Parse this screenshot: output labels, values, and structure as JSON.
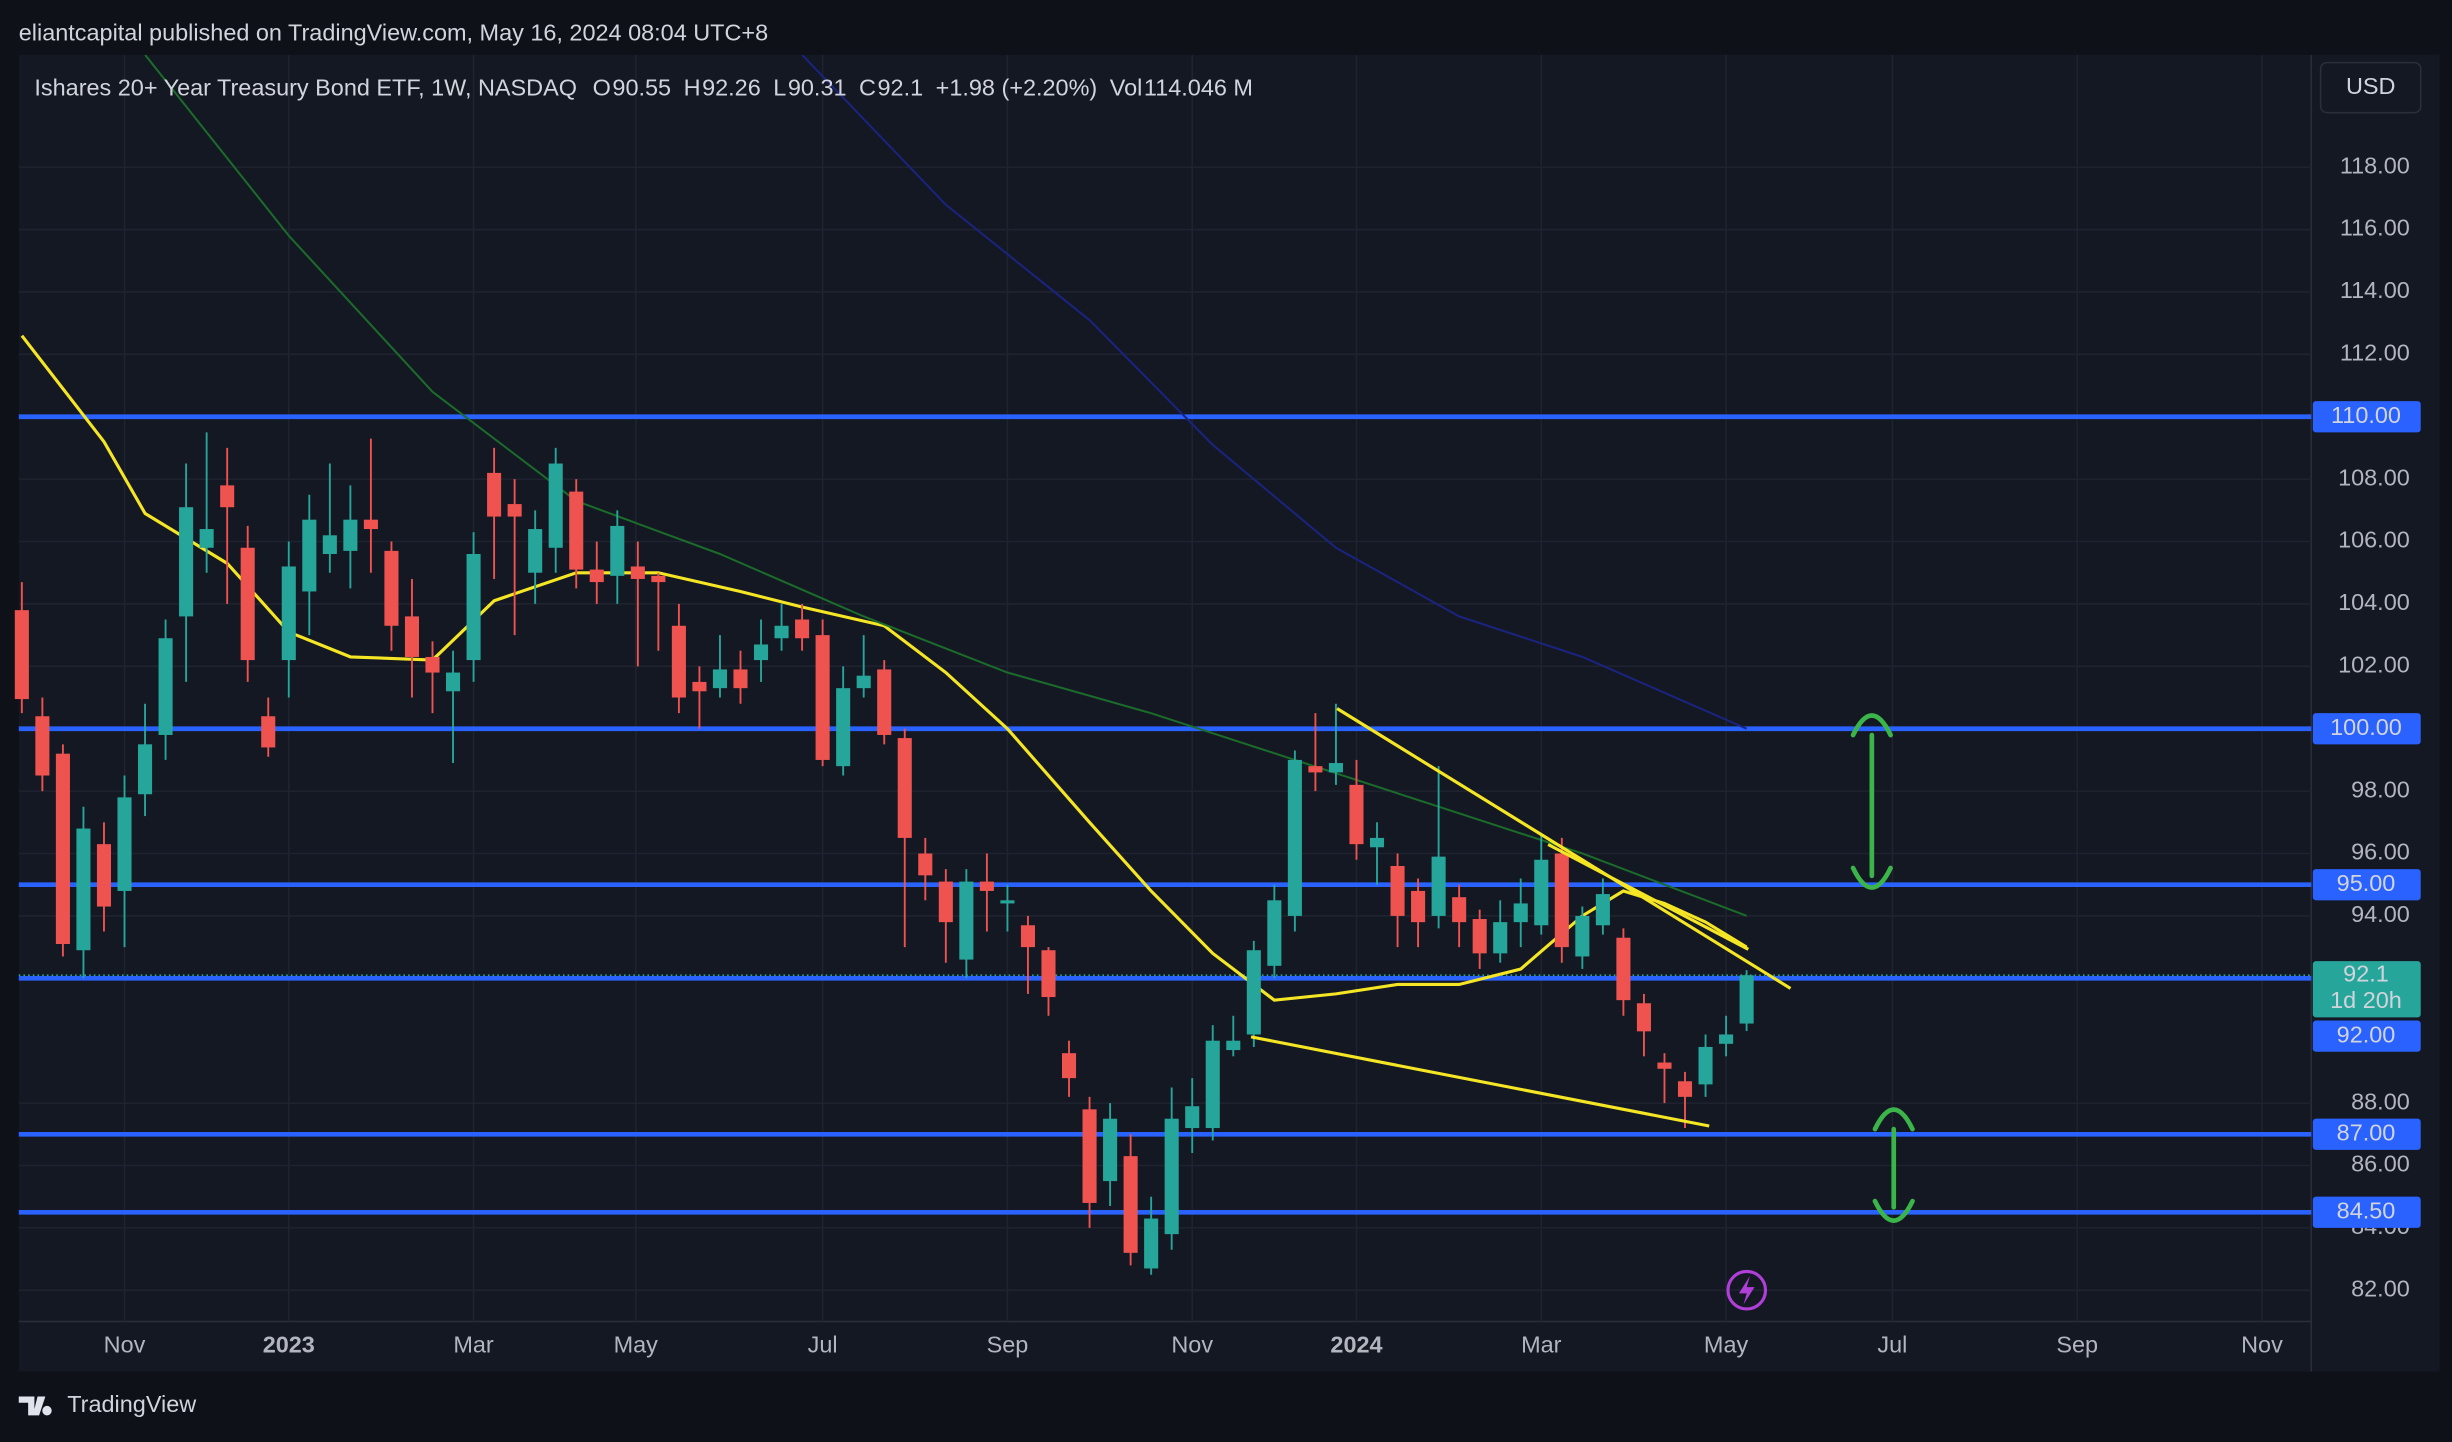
{
  "header": "eliantcapital published on TradingView.com, May 16, 2024 08:04 UTC+8",
  "brand": "TradingView",
  "chart_data": {
    "type": "candlestick",
    "title": "Ishares 20+ Year Treasury Bond ETF, 1W, NASDAQ",
    "ohlc_labels": [
      "O",
      "H",
      "L",
      "C"
    ],
    "change": "+1.98 (+2.20%)",
    "volume_label": "Vol",
    "volume": "114.046 M",
    "currency": "USD",
    "countdown": "1d 20h",
    "up_color": "#26a69a",
    "down_color": "#ef5350",
    "level_color": "#2962ff",
    "xlim": [
      -0.15,
      111.5
    ],
    "ylim": [
      81.0,
      121.6
    ],
    "xticks": [
      {
        "value": 5,
        "label": "Nov"
      },
      {
        "value": 13.0,
        "label": "2023"
      },
      {
        "value": 22.0,
        "label": "Mar"
      },
      {
        "value": 29.9,
        "label": "May"
      },
      {
        "value": 39.0,
        "label": "Jul"
      },
      {
        "value": 48.0,
        "label": "Sep"
      },
      {
        "value": 57.0,
        "label": "Nov"
      },
      {
        "value": 65.0,
        "label": "2024"
      },
      {
        "value": 74.0,
        "label": "Mar"
      },
      {
        "value": 83.0,
        "label": "May"
      },
      {
        "value": 91.1,
        "label": "Jul"
      },
      {
        "value": 100.1,
        "label": "Sep"
      },
      {
        "value": 109.1,
        "label": "Nov"
      }
    ],
    "yticks": [
      {
        "value": 82,
        "label": "82.00"
      },
      {
        "value": 84,
        "label": "84.00"
      },
      {
        "value": 86,
        "label": "86.00"
      },
      {
        "value": 88,
        "label": "88.00"
      },
      {
        "value": 94,
        "label": "94.00"
      },
      {
        "value": 96,
        "label": "96.00"
      },
      {
        "value": 98,
        "label": "98.00"
      },
      {
        "value": 102,
        "label": "102.00"
      },
      {
        "value": 104,
        "label": "104.00"
      },
      {
        "value": 106,
        "label": "106.00"
      },
      {
        "value": 108,
        "label": "108.00"
      },
      {
        "value": 112,
        "label": "112.00"
      },
      {
        "value": 114,
        "label": "114.00"
      },
      {
        "value": 116,
        "label": "116.00"
      },
      {
        "value": 118,
        "label": "118.00"
      }
    ],
    "grid": true,
    "levels": [
      {
        "value": 110,
        "label": "110.00"
      },
      {
        "value": 100,
        "label": "100.00"
      },
      {
        "value": 95,
        "label": "95.00"
      },
      {
        "value": 92,
        "label": "92.00"
      },
      {
        "value": 87,
        "label": "87.00"
      },
      {
        "value": 84.5,
        "label": "84.50"
      }
    ],
    "series": [
      {
        "color": "#f5e625",
        "x": [
          0,
          4,
          6,
          10,
          13,
          16,
          20,
          23,
          27,
          31,
          35,
          38,
          42,
          45,
          48,
          52,
          55,
          58,
          61,
          64,
          67,
          70,
          73,
          76,
          78,
          80,
          82,
          84
        ],
        "values": [
          112.6,
          109.2,
          106.9,
          105.3,
          103.1,
          102.3,
          102.2,
          104.1,
          105.0,
          105.0,
          104.4,
          103.9,
          103.3,
          101.8,
          100.0,
          97.0,
          94.8,
          92.8,
          91.3,
          91.5,
          91.8,
          91.8,
          92.3,
          94.0,
          94.8,
          94.4,
          93.8,
          93.0
        ]
      },
      {
        "color": "#1b6b2a",
        "x": [
          6,
          13,
          20,
          27,
          34,
          41,
          48,
          55,
          62,
          69,
          76,
          84
        ],
        "values": [
          121.6,
          115.8,
          110.8,
          107.3,
          105.6,
          103.6,
          101.8,
          100.5,
          99.0,
          97.5,
          96.0,
          94.0
        ]
      },
      {
        "color": "#1a237e",
        "x": [
          38,
          45,
          52,
          58,
          64,
          70,
          76,
          84
        ],
        "values": [
          121.6,
          116.8,
          113.1,
          109.1,
          105.8,
          103.6,
          102.3,
          100.0
        ]
      }
    ],
    "candles": [
      {
        "open": 103.8,
        "high": 104.7,
        "low": 100.5,
        "close": 100.95
      },
      {
        "open": 100.4,
        "high": 101,
        "low": 98,
        "close": 98.5
      },
      {
        "open": 99.2,
        "high": 99.5,
        "low": 92.7,
        "close": 93.1
      },
      {
        "open": 92.9,
        "high": 97.5,
        "low": 92,
        "close": 96.8
      },
      {
        "open": 96.3,
        "high": 97,
        "low": 93.5,
        "close": 94.3
      },
      {
        "open": 94.8,
        "high": 98.5,
        "low": 93,
        "close": 97.8
      },
      {
        "open": 97.9,
        "high": 100.8,
        "low": 97.2,
        "close": 99.5
      },
      {
        "open": 99.8,
        "high": 103.5,
        "low": 99,
        "close": 102.9
      },
      {
        "open": 103.6,
        "high": 108.5,
        "low": 101.5,
        "close": 107.1
      },
      {
        "open": 105.8,
        "high": 109.5,
        "low": 105,
        "close": 106.4
      },
      {
        "open": 107.8,
        "high": 109,
        "low": 104,
        "close": 107.1
      },
      {
        "open": 105.8,
        "high": 106.5,
        "low": 101.5,
        "close": 102.2
      },
      {
        "open": 100.4,
        "high": 101,
        "low": 99.1,
        "close": 99.4
      },
      {
        "open": 102.2,
        "high": 106,
        "low": 101,
        "close": 105.2
      },
      {
        "open": 104.4,
        "high": 107.5,
        "low": 103,
        "close": 106.7
      },
      {
        "open": 105.6,
        "high": 108.5,
        "low": 105,
        "close": 106.2
      },
      {
        "open": 105.7,
        "high": 107.8,
        "low": 104.5,
        "close": 106.7
      },
      {
        "open": 106.7,
        "high": 109.3,
        "low": 105,
        "close": 106.4
      },
      {
        "open": 105.7,
        "high": 106,
        "low": 102.5,
        "close": 103.3
      },
      {
        "open": 103.6,
        "high": 104.8,
        "low": 101,
        "close": 102.3
      },
      {
        "open": 102.3,
        "high": 102.8,
        "low": 100.5,
        "close": 101.8
      },
      {
        "open": 101.2,
        "high": 102.5,
        "low": 98.9,
        "close": 101.8
      },
      {
        "open": 102.2,
        "high": 106.3,
        "low": 101.5,
        "close": 105.6
      },
      {
        "open": 108.2,
        "high": 109,
        "low": 104.8,
        "close": 106.8
      },
      {
        "open": 107.2,
        "high": 108,
        "low": 103,
        "close": 106.8
      },
      {
        "open": 105,
        "high": 107,
        "low": 104,
        "close": 106.4
      },
      {
        "open": 105.8,
        "high": 109,
        "low": 105,
        "close": 108.5
      },
      {
        "open": 107.6,
        "high": 108,
        "low": 104.5,
        "close": 105.1
      },
      {
        "open": 105.1,
        "high": 106,
        "low": 104,
        "close": 104.7
      },
      {
        "open": 104.9,
        "high": 107,
        "low": 104,
        "close": 106.5
      },
      {
        "open": 105.2,
        "high": 106,
        "low": 102,
        "close": 104.8
      },
      {
        "open": 104.9,
        "high": 105,
        "low": 102.5,
        "close": 104.7
      },
      {
        "open": 103.3,
        "high": 104,
        "low": 100.5,
        "close": 101.0
      },
      {
        "open": 101.5,
        "high": 102,
        "low": 100,
        "close": 101.2
      },
      {
        "open": 101.3,
        "high": 103,
        "low": 101,
        "close": 101.9
      },
      {
        "open": 101.9,
        "high": 102.5,
        "low": 100.8,
        "close": 101.3
      },
      {
        "open": 102.2,
        "high": 103.5,
        "low": 101.5,
        "close": 102.7
      },
      {
        "open": 102.9,
        "high": 104,
        "low": 102.5,
        "close": 103.3
      },
      {
        "open": 103.5,
        "high": 104,
        "low": 102.5,
        "close": 102.9
      },
      {
        "open": 103,
        "high": 103.5,
        "low": 98.8,
        "close": 99
      },
      {
        "open": 98.8,
        "high": 102,
        "low": 98.5,
        "close": 101.3
      },
      {
        "open": 101.3,
        "high": 103,
        "low": 101,
        "close": 101.7
      },
      {
        "open": 101.9,
        "high": 102.2,
        "low": 99.5,
        "close": 99.8
      },
      {
        "open": 99.7,
        "high": 100,
        "low": 93,
        "close": 96.5
      },
      {
        "open": 96,
        "high": 96.5,
        "low": 94.5,
        "close": 95.3
      },
      {
        "open": 95.1,
        "high": 95.5,
        "low": 92.5,
        "close": 93.8
      },
      {
        "open": 92.6,
        "high": 95.5,
        "low": 92,
        "close": 95.1
      },
      {
        "open": 95.1,
        "high": 96,
        "low": 93.5,
        "close": 94.8
      },
      {
        "open": 94.4,
        "high": 95,
        "low": 93.5,
        "close": 94.5
      },
      {
        "open": 93.7,
        "high": 94,
        "low": 91.5,
        "close": 93
      },
      {
        "open": 92.9,
        "high": 93,
        "low": 90.8,
        "close": 91.4
      },
      {
        "open": 89.6,
        "high": 90,
        "low": 88.2,
        "close": 88.8
      },
      {
        "open": 87.8,
        "high": 88.2,
        "low": 84,
        "close": 84.8
      },
      {
        "open": 85.5,
        "high": 88,
        "low": 84.7,
        "close": 87.5
      },
      {
        "open": 86.3,
        "high": 87,
        "low": 82.8,
        "close": 83.2
      },
      {
        "open": 82.7,
        "high": 85,
        "low": 82.5,
        "close": 84.3
      },
      {
        "open": 83.8,
        "high": 88.5,
        "low": 83.3,
        "close": 87.5
      },
      {
        "open": 87.2,
        "high": 88.8,
        "low": 86.4,
        "close": 87.9
      },
      {
        "open": 87.2,
        "high": 90.5,
        "low": 86.8,
        "close": 90
      },
      {
        "open": 89.7,
        "high": 90.8,
        "low": 89.5,
        "close": 90
      },
      {
        "open": 90.2,
        "high": 93.2,
        "low": 89.8,
        "close": 92.9
      },
      {
        "open": 92.4,
        "high": 95,
        "low": 92,
        "close": 94.5
      },
      {
        "open": 94,
        "high": 99.3,
        "low": 93.5,
        "close": 99
      },
      {
        "open": 98.8,
        "high": 100.5,
        "low": 98,
        "close": 98.6
      },
      {
        "open": 98.6,
        "high": 100.8,
        "low": 98.2,
        "close": 98.9
      },
      {
        "open": 98.2,
        "high": 99,
        "low": 95.8,
        "close": 96.3
      },
      {
        "open": 96.2,
        "high": 97,
        "low": 95,
        "close": 96.5
      },
      {
        "open": 95.6,
        "high": 96,
        "low": 93,
        "close": 94
      },
      {
        "open": 94.8,
        "high": 95.2,
        "low": 93,
        "close": 93.8
      },
      {
        "open": 94,
        "high": 98.8,
        "low": 93.6,
        "close": 95.9
      },
      {
        "open": 94.6,
        "high": 95,
        "low": 93,
        "close": 93.8
      },
      {
        "open": 93.9,
        "high": 94.2,
        "low": 92.3,
        "close": 92.8
      },
      {
        "open": 92.8,
        "high": 94.5,
        "low": 92.5,
        "close": 93.8
      },
      {
        "open": 93.8,
        "high": 95.2,
        "low": 93,
        "close": 94.4
      },
      {
        "open": 93.7,
        "high": 96.6,
        "low": 93.4,
        "close": 95.8
      },
      {
        "open": 96,
        "high": 96.5,
        "low": 92.5,
        "close": 93
      },
      {
        "open": 92.7,
        "high": 94.3,
        "low": 92.3,
        "close": 94
      },
      {
        "open": 93.7,
        "high": 95.2,
        "low": 93.4,
        "close": 94.7
      },
      {
        "open": 93.3,
        "high": 93.6,
        "low": 90.8,
        "close": 91.3
      },
      {
        "open": 91.2,
        "high": 91.5,
        "low": 89.5,
        "close": 90.3
      },
      {
        "open": 89.3,
        "high": 89.6,
        "low": 88,
        "close": 89.1
      },
      {
        "open": 88.7,
        "high": 89,
        "low": 87.2,
        "close": 88.2
      },
      {
        "open": 88.6,
        "high": 90.2,
        "low": 88.2,
        "close": 89.8
      },
      {
        "open": 89.9,
        "high": 90.8,
        "low": 89.5,
        "close": 90.2
      },
      {
        "open": 90.55,
        "high": 92.26,
        "low": 90.31,
        "close": 92.1
      }
    ]
  }
}
